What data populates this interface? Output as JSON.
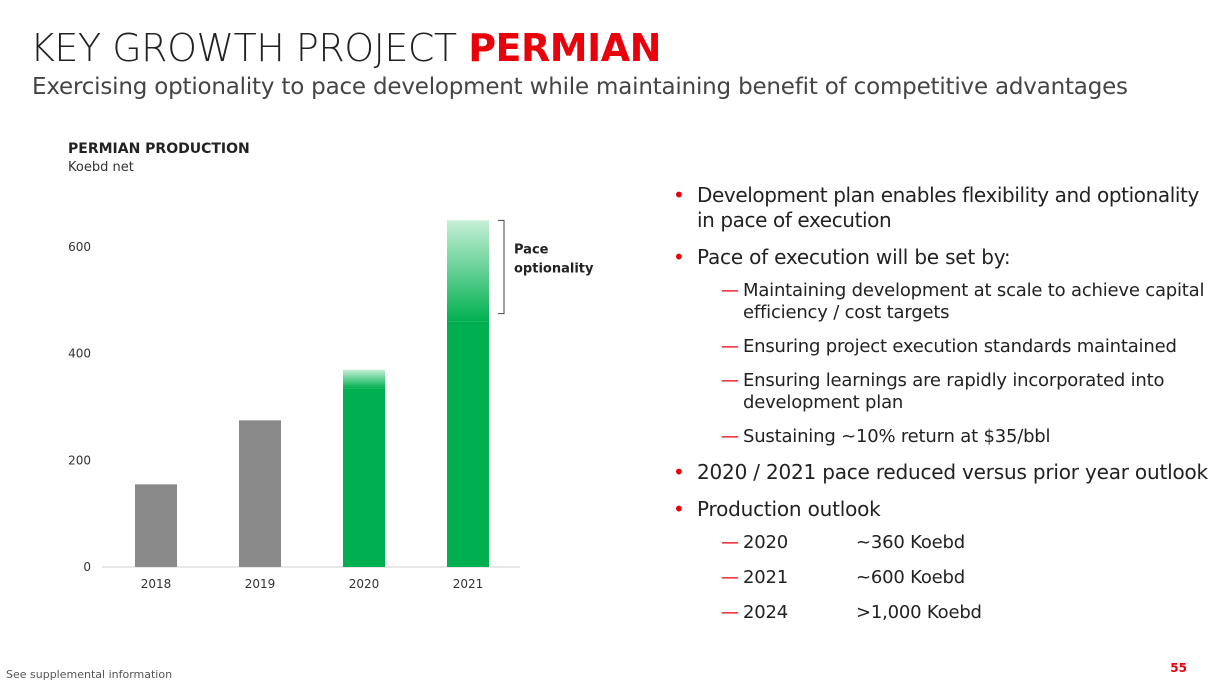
{
  "slide": {
    "title_prefix": "KEY GROWTH PROJECT",
    "title_accent": "PERMIAN",
    "subtitle": "Exercising optionality to pace development while maintaining benefit of competitive advantages",
    "footnote": "See supplemental information",
    "page_number": "55",
    "accent_color": "#e8000b"
  },
  "chart_data": {
    "type": "bar",
    "title": "PERMIAN PRODUCTION",
    "subtitle": "Koebd net",
    "xlabel": "",
    "ylabel": "",
    "categories": [
      "2018",
      "2019",
      "2020",
      "2021"
    ],
    "values": [
      155,
      275,
      370,
      650
    ],
    "solid_values": [
      155,
      275,
      335,
      460
    ],
    "bar_colors": [
      "#8a8a8a",
      "#8a8a8a",
      "#00b050",
      "#00b050"
    ],
    "gradient_top_color": "#c6f0d7",
    "ylim": [
      0,
      700
    ],
    "yticks": [
      0,
      200,
      400,
      600
    ],
    "grid": false,
    "annotation": {
      "label_line1": "Pace",
      "label_line2": "optionality",
      "range": [
        475,
        650
      ],
      "category": "2021"
    }
  },
  "bullets": {
    "b1": "Development plan enables flexibility and optionality in pace of execution",
    "b2": "Pace of execution will be set by:",
    "b2_sub": [
      "Maintaining development at scale to achieve capital efficiency / cost targets",
      "Ensuring project execution standards maintained",
      "Ensuring learnings are rapidly incorporated into development plan",
      "Sustaining ~10% return at $35/bbl"
    ],
    "b3": "2020 / 2021 pace reduced versus prior year outlook",
    "b4": "Production outlook",
    "outlook": [
      {
        "year": "2020",
        "value": "~360 Koebd"
      },
      {
        "year": "2021",
        "value": "~600 Koebd"
      },
      {
        "year": "2024",
        "value": ">1,000 Koebd"
      }
    ]
  }
}
